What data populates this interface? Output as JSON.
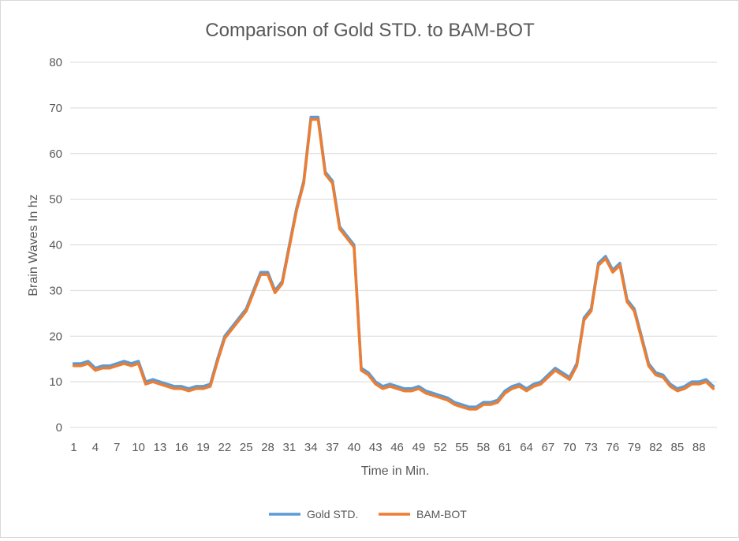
{
  "chart_data": {
    "type": "line",
    "title": "Comparison of Gold STD. to BAM-BOT",
    "xlabel": "Time in Min.",
    "ylabel": "Brain Waves In hz",
    "ylim": [
      0,
      80
    ],
    "yticks": [
      0,
      10,
      20,
      30,
      40,
      50,
      60,
      70,
      80
    ],
    "xtick_labels": [
      "1",
      "4",
      "7",
      "10",
      "13",
      "16",
      "19",
      "22",
      "25",
      "28",
      "31",
      "34",
      "37",
      "40",
      "43",
      "46",
      "49",
      "52",
      "55",
      "58",
      "61",
      "64",
      "67",
      "70",
      "73",
      "76",
      "79",
      "82",
      "85",
      "88"
    ],
    "grid": true,
    "legend_position": "bottom",
    "x": [
      1,
      2,
      3,
      4,
      5,
      6,
      7,
      8,
      9,
      10,
      11,
      12,
      13,
      14,
      15,
      16,
      17,
      18,
      19,
      20,
      21,
      22,
      23,
      24,
      25,
      26,
      27,
      28,
      29,
      30,
      31,
      32,
      33,
      34,
      35,
      36,
      37,
      38,
      39,
      40,
      41,
      42,
      43,
      44,
      45,
      46,
      47,
      48,
      49,
      50,
      51,
      52,
      53,
      54,
      55,
      56,
      57,
      58,
      59,
      60,
      61,
      62,
      63,
      64,
      65,
      66,
      67,
      68,
      69,
      70,
      71,
      72,
      73,
      74,
      75,
      76,
      77,
      78,
      79,
      80,
      81,
      82,
      83,
      84,
      85,
      86,
      87,
      88,
      89,
      90
    ],
    "series": [
      {
        "name": "Gold STD.",
        "color": "#5b9bd5",
        "values": [
          14,
          14,
          14.5,
          13,
          13.5,
          13.5,
          14,
          14.5,
          14,
          14.5,
          10,
          10.5,
          10,
          9.5,
          9,
          9,
          8.5,
          9,
          9,
          9.5,
          15,
          20,
          22,
          24,
          26,
          30,
          34,
          34,
          30,
          32,
          40,
          48,
          54,
          68,
          68,
          56,
          54,
          44,
          42,
          40,
          13,
          12,
          10,
          9,
          9.5,
          9,
          8.5,
          8.5,
          9,
          8,
          7.5,
          7,
          6.5,
          5.5,
          5,
          4.5,
          4.5,
          5.5,
          5.5,
          6,
          8,
          9,
          9.5,
          8.5,
          9.5,
          10,
          11.5,
          13,
          12,
          11,
          14,
          24,
          26,
          36,
          37.5,
          34.5,
          36,
          28,
          26,
          20,
          14,
          12,
          11.5,
          9.5,
          8.5,
          9,
          10,
          10,
          10.5,
          9
        ]
      },
      {
        "name": "BAM-BOT",
        "color": "#ed7d31",
        "values": [
          13.5,
          13.5,
          14,
          12.5,
          13,
          13,
          13.5,
          14,
          13.5,
          14,
          9.5,
          10,
          9.5,
          9,
          8.5,
          8.5,
          8,
          8.5,
          8.5,
          9,
          14.5,
          19.5,
          21.5,
          23.5,
          25.5,
          29.5,
          33.5,
          33.5,
          29.5,
          31.5,
          39.5,
          47.5,
          53.5,
          67.5,
          67.5,
          55.5,
          53.5,
          43.5,
          41.5,
          39.5,
          12.5,
          11.5,
          9.5,
          8.5,
          9,
          8.5,
          8,
          8,
          8.5,
          7.5,
          7,
          6.5,
          6,
          5,
          4.5,
          4,
          4,
          5,
          5,
          5.5,
          7.5,
          8.5,
          9,
          8,
          9,
          9.5,
          11,
          12.5,
          11.5,
          10.5,
          13.5,
          23.5,
          25.5,
          35.5,
          37,
          34,
          35.5,
          27.5,
          25.5,
          19.5,
          13.5,
          11.5,
          11,
          9,
          8,
          8.5,
          9.5,
          9.5,
          10,
          8.5
        ]
      }
    ]
  }
}
